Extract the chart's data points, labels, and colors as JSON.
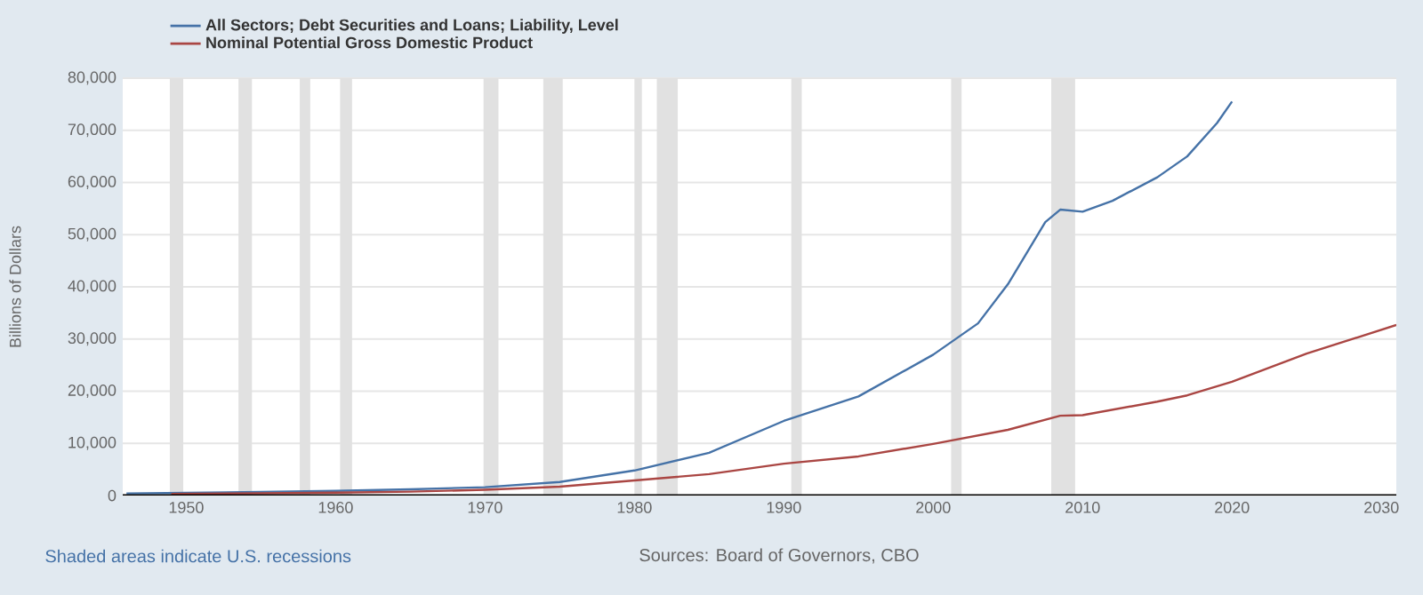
{
  "chart_data": {
    "type": "line",
    "ylabel": "Billions of Dollars",
    "annotations": [
      "Shaded areas indicate U.S. recessions",
      "Sources: Board of Governors, CBO"
    ],
    "xlim": [
      1945.75,
      2031
    ],
    "xticks": [
      1950,
      1960,
      1970,
      1980,
      1990,
      2000,
      2010,
      2020,
      2030
    ],
    "ylim": [
      0,
      80000
    ],
    "yticks": [
      0,
      {
        "value": 10000,
        "label": "10,000"
      },
      {
        "value": 20000,
        "label": "20,000"
      },
      {
        "value": 30000,
        "label": "30,000"
      },
      {
        "value": 40000,
        "label": "40,000"
      },
      {
        "value": 50000,
        "label": "50,000"
      },
      {
        "value": 60000,
        "label": "60,000"
      },
      {
        "value": 70000,
        "label": "70,000"
      },
      {
        "value": 80000,
        "label": "80,000"
      }
    ],
    "grid": "y",
    "legend": "top left",
    "line_style": "solid",
    "bands": [
      {
        "axis": "x",
        "from": 1948.9,
        "to": 1949.8,
        "color": "#e1e1e1"
      },
      {
        "axis": "x",
        "from": 1953.5,
        "to": 1954.4,
        "color": "#e1e1e1"
      },
      {
        "axis": "x",
        "from": 1957.6,
        "to": 1958.3,
        "color": "#e1e1e1"
      },
      {
        "axis": "x",
        "from": 1960.3,
        "to": 1961.1,
        "color": "#e1e1e1"
      },
      {
        "axis": "x",
        "from": 1969.9,
        "to": 1970.9,
        "color": "#e1e1e1"
      },
      {
        "axis": "x",
        "from": 1973.9,
        "to": 1975.2,
        "color": "#e1e1e1"
      },
      {
        "axis": "x",
        "from": 1980.0,
        "to": 1980.5,
        "color": "#e1e1e1"
      },
      {
        "axis": "x",
        "from": 1981.5,
        "to": 1982.9,
        "color": "#e1e1e1"
      },
      {
        "axis": "x",
        "from": 1990.5,
        "to": 1991.2,
        "color": "#e1e1e1"
      },
      {
        "axis": "x",
        "from": 2001.2,
        "to": 2001.9,
        "color": "#e1e1e1"
      },
      {
        "axis": "x",
        "from": 2007.9,
        "to": 2009.5,
        "color": "#e1e1e1"
      }
    ],
    "series": [
      {
        "name": "All Sectors; Debt Securities and Loans; Liability, Level",
        "color": "#4572a7",
        "x": [
          1946,
          1950,
          1955,
          1960,
          1965,
          1970,
          1975,
          1980,
          1985,
          1990,
          1995,
          2000,
          2003,
          2005,
          2007.5,
          2008.5,
          2010,
          2012,
          2015,
          2017,
          2019,
          2020
        ],
        "values": [
          400,
          500,
          700,
          900,
          1200,
          1600,
          2600,
          4800,
          8200,
          14300,
          19000,
          27000,
          33000,
          40500,
          52400,
          54800,
          54400,
          56500,
          61000,
          65000,
          71400,
          75500
        ]
      },
      {
        "name": "Nominal Potential Gross Domestic Product",
        "color": "#aa4643",
        "x": [
          1949,
          1955,
          1960,
          1965,
          1970,
          1975,
          1980,
          1985,
          1990,
          1995,
          2000,
          2005,
          2008.5,
          2010,
          2015,
          2017,
          2020,
          2025,
          2031
        ],
        "values": [
          300,
          420,
          550,
          750,
          1100,
          1700,
          2900,
          4100,
          6100,
          7500,
          9900,
          12600,
          15300,
          15400,
          18000,
          19200,
          21800,
          27200,
          32700
        ]
      }
    ]
  }
}
